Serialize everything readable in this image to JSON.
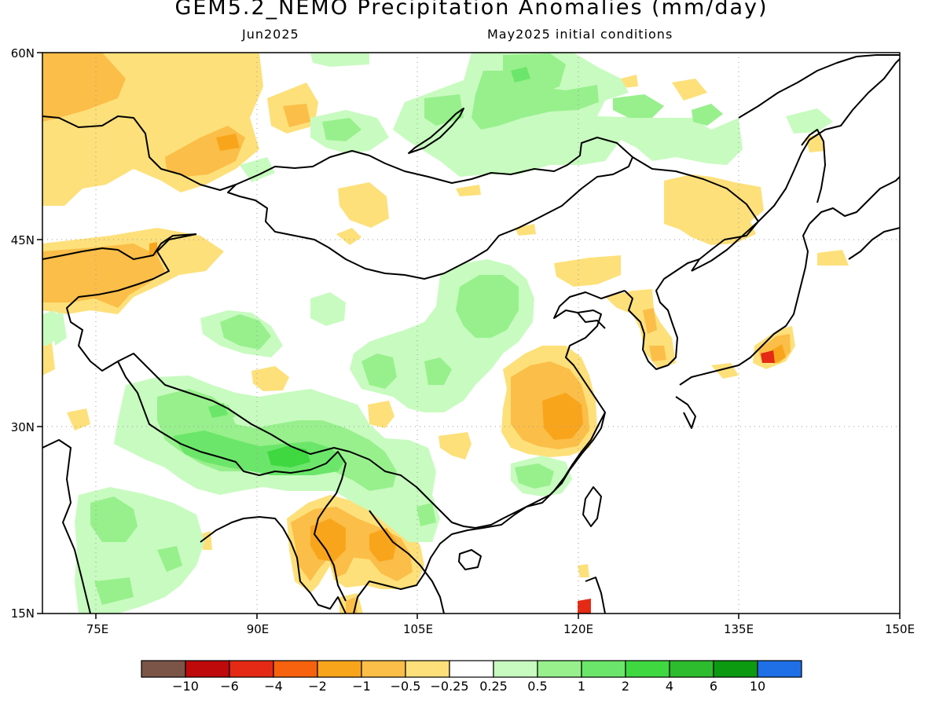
{
  "header": {
    "title": "GEM5.2_NEMO Precipitation Anomalies (mm/day)",
    "valid_month": "Jun2025",
    "initial_conditions": "May2025 initial conditions"
  },
  "map": {
    "lat_labels": [
      "60N",
      "45N",
      "30N",
      "15N"
    ],
    "lon_labels": [
      "75E",
      "90E",
      "105E",
      "120E",
      "135E",
      "150E"
    ],
    "colors": {
      "wet_light": "#c8fbc0",
      "wet_mid": "#97f08c",
      "wet_strong": "#6be66a",
      "wet_heavy": "#3fd841",
      "dry_light": "#fde07a",
      "dry_mid": "#fbbe48",
      "dry_strong": "#f9a51c",
      "dry_heavy": "#f77d0c",
      "dry_extreme": "#e42a14"
    }
  },
  "colorbar": {
    "colors": [
      "#7b5548",
      "#be0a0a",
      "#e42a14",
      "#f7620e",
      "#f9a51c",
      "#fbbe48",
      "#fde07a",
      "#ffffff",
      "#c8fbc0",
      "#97f08c",
      "#6be66a",
      "#3fd841",
      "#2dbc2d",
      "#0c9a10",
      "#1f6fe6"
    ],
    "labels": [
      "−10",
      "−6",
      "−4",
      "−2",
      "−1",
      "−0.5",
      "−0.25",
      "0.25",
      "0.5",
      "1",
      "2",
      "4",
      "6",
      "10"
    ]
  }
}
